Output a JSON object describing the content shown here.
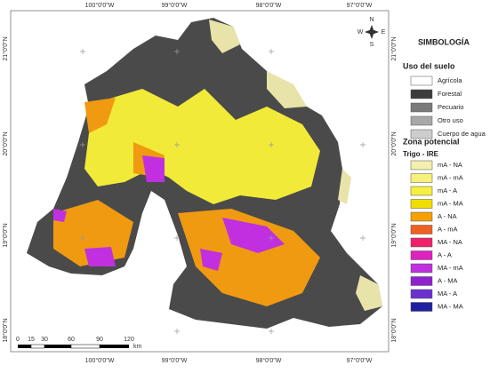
{
  "map": {
    "top_labels": [
      "100°0'0\"W",
      "99°0'0\"W",
      "98°0'0\"W",
      "97°0'0\"W"
    ],
    "bottom_labels": [
      "100°0'0\"W",
      "99°0'0\"W",
      "98°0'0\"W",
      "97°0'0\"W"
    ],
    "left_labels": [
      "21°0'0\"N",
      "20°0'0\"N",
      "19°0'0\"N",
      "18°0'0\"N"
    ],
    "right_labels": [
      "21°0'0\"N",
      "20°0'0\"N",
      "19°0'0\"N",
      "18°0'0\"N"
    ],
    "compass": {
      "n": "N",
      "s": "S",
      "e": "E",
      "w": "W"
    },
    "scale": {
      "ticks": [
        0,
        15,
        30,
        60,
        90,
        120
      ],
      "unit": "km"
    }
  },
  "legend": {
    "title": "SIMBOLOGÍA",
    "land_use": {
      "title": "Uso del suelo",
      "items": [
        {
          "label": "Agrícola",
          "color": "#ffffff"
        },
        {
          "label": "Forestal",
          "color": "#3c3c3c"
        },
        {
          "label": "Pecuario",
          "color": "#7a7a7a"
        },
        {
          "label": "Otro uso",
          "color": "#a8a8a8"
        },
        {
          "label": "Cuerpo de agua",
          "color": "#cdcdcd"
        }
      ]
    },
    "zone": {
      "title": "Zona potencial",
      "subtitle": "Trigo - IRE",
      "items": [
        {
          "label": "mA - NA",
          "color": "#f4efb0"
        },
        {
          "label": "mA - mA",
          "color": "#f7f07a"
        },
        {
          "label": "mA - A",
          "color": "#f5ef40"
        },
        {
          "label": "mA - MA",
          "color": "#f0de00"
        },
        {
          "label": "A - NA",
          "color": "#f5a000"
        },
        {
          "label": "A - mA",
          "color": "#f06020"
        },
        {
          "label": "MA - NA",
          "color": "#f0206a"
        },
        {
          "label": "A - A",
          "color": "#e020c0"
        },
        {
          "label": "MA - mA",
          "color": "#c030e0"
        },
        {
          "label": "A - MA",
          "color": "#9020d0"
        },
        {
          "label": "MA - A",
          "color": "#6a30d0"
        },
        {
          "label": "MA - MA",
          "color": "#2020a0"
        }
      ]
    }
  }
}
